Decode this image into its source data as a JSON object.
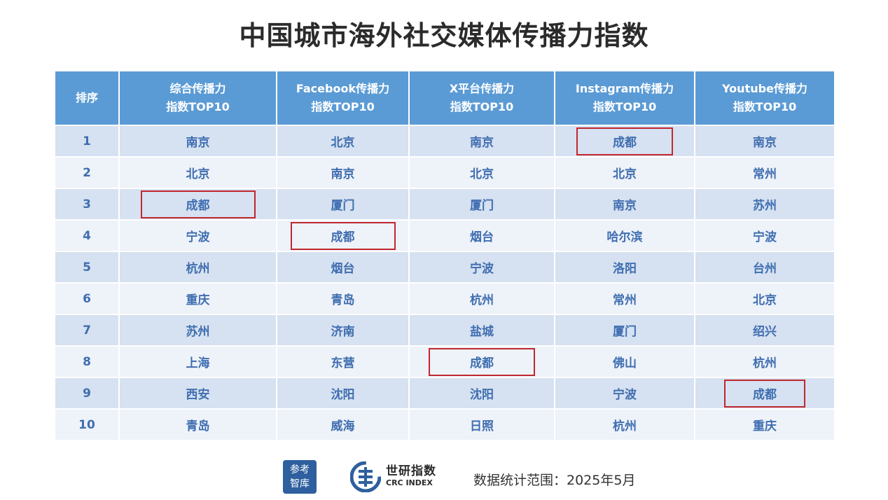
{
  "title": "中国城市海外社交媒体传播力指数",
  "table": {
    "headers": [
      [
        "排序"
      ],
      [
        "综合传播力",
        "指数TOP10"
      ],
      [
        "Facebook传播力",
        "指数TOP10"
      ],
      [
        "X平台传播力",
        "指数TOP10"
      ],
      [
        "Instagram传播力",
        "指数TOP10"
      ],
      [
        "Youtube传播力",
        "指数TOP10"
      ]
    ],
    "rows": [
      [
        "1",
        "南京",
        "北京",
        "南京",
        "成都",
        "南京"
      ],
      [
        "2",
        "北京",
        "南京",
        "北京",
        "北京",
        "常州"
      ],
      [
        "3",
        "成都",
        "厦门",
        "厦门",
        "南京",
        "苏州"
      ],
      [
        "4",
        "宁波",
        "成都",
        "烟台",
        "哈尔滨",
        "宁波"
      ],
      [
        "5",
        "杭州",
        "烟台",
        "宁波",
        "洛阳",
        "台州"
      ],
      [
        "6",
        "重庆",
        "青岛",
        "杭州",
        "常州",
        "北京"
      ],
      [
        "7",
        "苏州",
        "济南",
        "盐城",
        "厦门",
        "绍兴"
      ],
      [
        "8",
        "上海",
        "东营",
        "成都",
        "佛山",
        "杭州"
      ],
      [
        "9",
        "西安",
        "沈阳",
        "沈阳",
        "宁波",
        "成都"
      ],
      [
        "10",
        "青岛",
        "威海",
        "日照",
        "杭州",
        "重庆"
      ]
    ],
    "highlighted_city": "成都",
    "highlight_color": "#c0272d"
  },
  "footer": {
    "logo1_lines": [
      "参考",
      "智库"
    ],
    "logo2_cn": "世研指数",
    "logo2_en": "CRC INDEX",
    "range_text": "数据统计范围：2025年5月"
  },
  "colors": {
    "header_bg": "#5b9bd5",
    "row_dark": "#d6e1f1",
    "row_light": "#eef2f9",
    "cell_text": "#3f6eb0"
  }
}
